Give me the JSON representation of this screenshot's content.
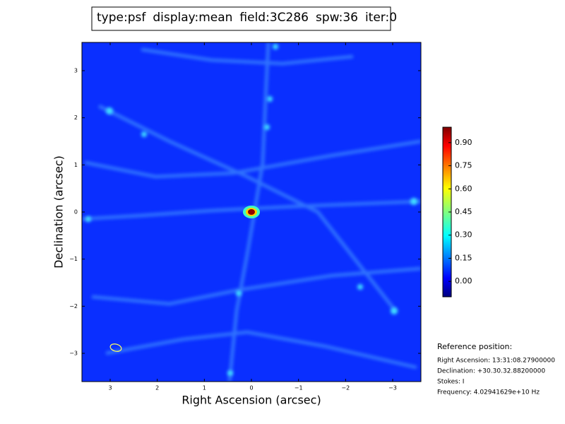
{
  "chart_data": {
    "type": "image",
    "title_parts": [
      {
        "text": "type:psf",
        "color": "#000000"
      },
      {
        "text": "display:mean",
        "color": "#ff0000"
      },
      {
        "text": "field:3C286",
        "color": "#000000"
      },
      {
        "text": "spw:36",
        "color": "#000000"
      },
      {
        "text": "iter:0",
        "color": "#000000"
      }
    ],
    "x_label": "Right Ascension (arcsec)",
    "y_label": "Declination (arcsec)",
    "xlim": [
      3.6,
      -3.6
    ],
    "ylim": [
      -3.6,
      3.6
    ],
    "xticks": [
      3,
      2,
      1,
      0,
      {
        "value": -1,
        "label": "−1"
      },
      {
        "value": -2,
        "label": "−2"
      },
      {
        "value": -3,
        "label": "−3"
      }
    ],
    "yticks": [
      {
        "value": -3,
        "label": "−3"
      },
      {
        "value": -2,
        "label": "−2"
      },
      {
        "value": -1,
        "label": "−1"
      },
      0,
      1,
      2,
      3
    ],
    "colormap": "jet",
    "clim": [
      -0.1,
      1.0
    ],
    "cticks": [
      {
        "value": 0,
        "label": "0.00"
      },
      {
        "value": 0.15,
        "label": "0.15"
      },
      {
        "value": 0.3,
        "label": "0.30"
      },
      {
        "value": 0.45,
        "label": "0.45"
      },
      {
        "value": 0.6,
        "label": "0.60"
      },
      {
        "value": 0.75,
        "label": "0.75"
      },
      {
        "value": 0.9,
        "label": "0.90"
      }
    ],
    "peak": {
      "x": 0,
      "y": 0,
      "value": 1.0
    },
    "reference": {
      "heading": "Reference position:",
      "lines": [
        "Right Ascension: 13:31:08.27900000",
        "Declination: +30.30.32.88200000",
        "Stokes: I",
        "Frequency: 4.02941629e+10 Hz"
      ]
    }
  }
}
